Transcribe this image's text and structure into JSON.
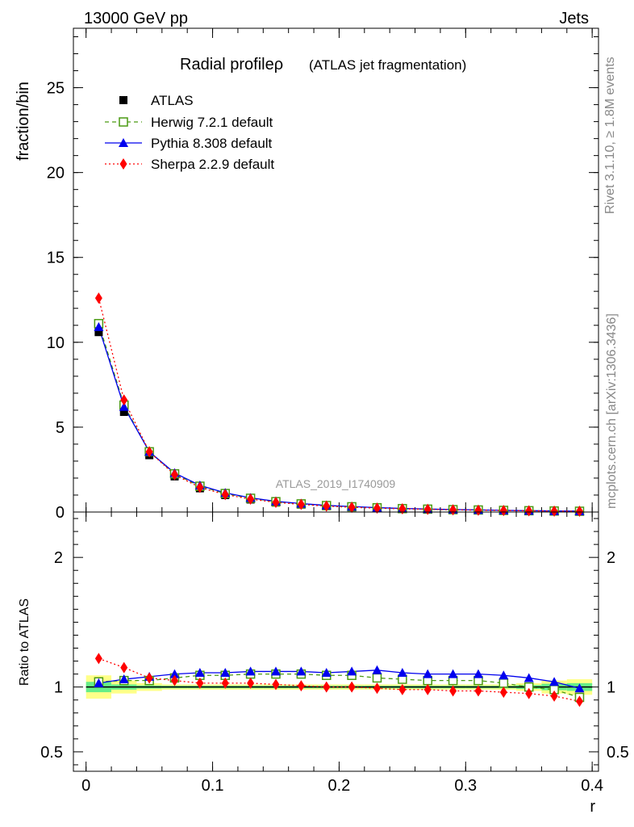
{
  "header": {
    "left": "13000 GeV pp",
    "right": "Jets"
  },
  "side": {
    "rivet": "Rivet 3.1.10, ≥ 1.8M events",
    "mcplots": "mcplots.cern.ch [arXiv:1306.3436]"
  },
  "chart_data": {
    "type": "scatter",
    "title": "Radial profileρ",
    "subtitle": "(ATLAS jet fragmentation)",
    "analysis_label": "ATLAS_2019_I1740909",
    "xlabel": "r",
    "ylabel_top": "fraction/bin",
    "ylabel_bottom": "Ratio to ATLAS",
    "xlim": [
      -0.01,
      0.405
    ],
    "x_ticks": [
      "0",
      "0.1",
      "0.2",
      "0.3",
      "0.4"
    ],
    "x_tick_values": [
      0,
      0.1,
      0.2,
      0.3,
      0.4
    ],
    "top": {
      "ylim": [
        0,
        28.5
      ],
      "y_ticks": [
        "0",
        "5",
        "10",
        "15",
        "20",
        "25"
      ],
      "y_tick_values": [
        0,
        5,
        10,
        15,
        20,
        25
      ]
    },
    "bottom": {
      "ylim": [
        0.35,
        2.35
      ],
      "y_ticks": [
        "0.5",
        "1",
        "2"
      ],
      "y_tick_values": [
        0.5,
        1,
        2
      ]
    },
    "x": [
      0.01,
      0.03,
      0.05,
      0.07,
      0.09,
      0.11,
      0.13,
      0.15,
      0.17,
      0.19,
      0.21,
      0.23,
      0.25,
      0.27,
      0.29,
      0.31,
      0.33,
      0.35,
      0.37,
      0.39
    ],
    "series": [
      {
        "name": "ATLAS",
        "color": "#000000",
        "marker": "square-filled",
        "values": [
          10.6,
          5.9,
          3.35,
          2.1,
          1.4,
          1.0,
          0.74,
          0.56,
          0.44,
          0.35,
          0.28,
          0.23,
          0.19,
          0.16,
          0.13,
          0.11,
          0.09,
          0.075,
          0.06,
          0.05
        ],
        "ratio": [
          1,
          1,
          1,
          1,
          1,
          1,
          1,
          1,
          1,
          1,
          1,
          1,
          1,
          1,
          1,
          1,
          1,
          1,
          1,
          1
        ]
      },
      {
        "name": "Herwig 7.2.1 default",
        "color": "#4a9a12",
        "marker": "square-open",
        "line": "dashed",
        "values": [
          11.1,
          6.3,
          3.55,
          2.25,
          1.52,
          1.09,
          0.81,
          0.61,
          0.48,
          0.38,
          0.31,
          0.25,
          0.2,
          0.17,
          0.14,
          0.12,
          0.096,
          0.077,
          0.059,
          0.046
        ],
        "ratio": [
          1.04,
          1.05,
          1.05,
          1.07,
          1.09,
          1.09,
          1.1,
          1.1,
          1.1,
          1.09,
          1.09,
          1.07,
          1.06,
          1.05,
          1.05,
          1.05,
          1.03,
          1.0,
          0.98,
          0.92
        ]
      },
      {
        "name": "Pythia 8.308 default",
        "color": "#0000ee",
        "marker": "triangle-filled",
        "line": "solid",
        "values": [
          10.9,
          6.2,
          3.55,
          2.3,
          1.57,
          1.13,
          0.84,
          0.63,
          0.5,
          0.39,
          0.32,
          0.26,
          0.21,
          0.18,
          0.15,
          0.125,
          0.1,
          0.08,
          0.062,
          0.05
        ],
        "ratio": [
          1.03,
          1.06,
          1.08,
          1.1,
          1.11,
          1.11,
          1.12,
          1.12,
          1.12,
          1.11,
          1.12,
          1.13,
          1.11,
          1.1,
          1.1,
          1.1,
          1.09,
          1.07,
          1.04,
          0.99
        ]
      },
      {
        "name": "Sherpa 2.2.9 default",
        "color": "#ff0000",
        "marker": "diamond-filled",
        "line": "dotted",
        "values": [
          12.6,
          6.6,
          3.55,
          2.2,
          1.45,
          1.03,
          0.76,
          0.57,
          0.45,
          0.35,
          0.28,
          0.23,
          0.19,
          0.16,
          0.13,
          0.11,
          0.088,
          0.072,
          0.056,
          0.045
        ],
        "ratio": [
          1.22,
          1.15,
          1.07,
          1.05,
          1.03,
          1.03,
          1.03,
          1.02,
          1.01,
          1.0,
          1.0,
          0.99,
          0.98,
          0.98,
          0.97,
          0.97,
          0.96,
          0.95,
          0.93,
          0.89
        ]
      }
    ],
    "uncertainty_bands": {
      "stat_color": "#66ee88",
      "total_color": "#ffff88",
      "x_edges": [
        0,
        0.02,
        0.04,
        0.06,
        0.08,
        0.1,
        0.12,
        0.14,
        0.16,
        0.18,
        0.2,
        0.22,
        0.24,
        0.26,
        0.28,
        0.3,
        0.32,
        0.34,
        0.36,
        0.38,
        0.4
      ],
      "total_half": [
        0.09,
        0.05,
        0.03,
        0.02,
        0.02,
        0.02,
        0.02,
        0.02,
        0.02,
        0.02,
        0.02,
        0.02,
        0.02,
        0.02,
        0.02,
        0.02,
        0.02,
        0.03,
        0.05,
        0.06
      ],
      "stat_half": [
        0.04,
        0.02,
        0.012,
        0.01,
        0.01,
        0.01,
        0.01,
        0.01,
        0.01,
        0.01,
        0.01,
        0.01,
        0.01,
        0.01,
        0.01,
        0.01,
        0.01,
        0.015,
        0.025,
        0.03
      ]
    }
  }
}
